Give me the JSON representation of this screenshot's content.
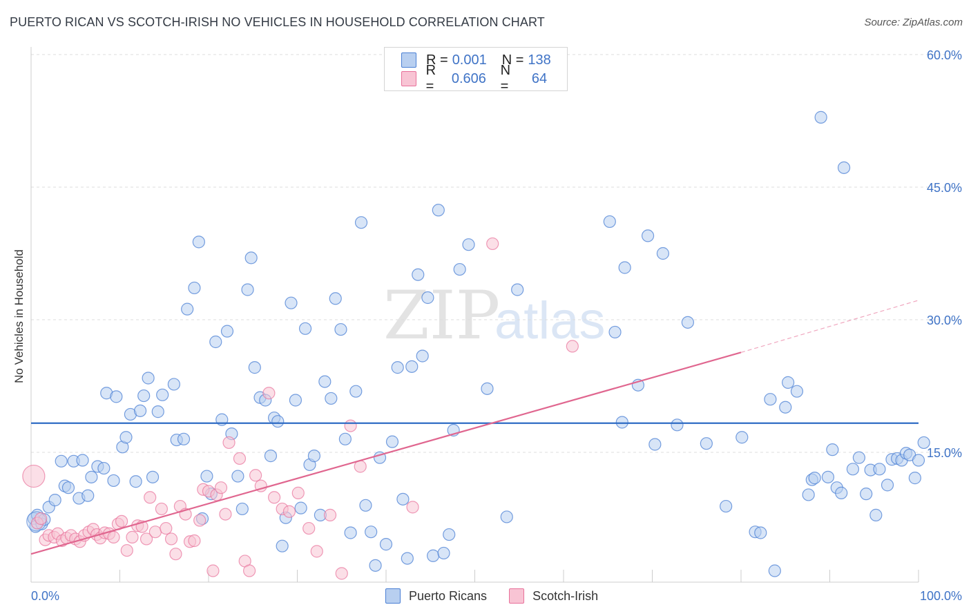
{
  "title": "PUERTO RICAN VS SCOTCH-IRISH NO VEHICLES IN HOUSEHOLD CORRELATION CHART",
  "source": "Source: ZipAtlas.com",
  "watermark": {
    "zip": "ZIP",
    "atlas": "atlas"
  },
  "legend": {
    "rows": [
      {
        "r_label": "R =",
        "r_value": "0.001",
        "n_label": "N =",
        "n_value": "138"
      },
      {
        "r_label": "R =",
        "r_value": "0.606",
        "n_label": "N =",
        "n_value": "64"
      }
    ]
  },
  "chart_data": {
    "type": "scatter",
    "title": "PUERTO RICAN VS SCOTCH-IRISH NO VEHICLES IN HOUSEHOLD CORRELATION CHART",
    "xlabel": "",
    "ylabel": "No Vehicles in Household",
    "xlim": [
      0,
      100
    ],
    "ylim": [
      0,
      63
    ],
    "x_tick_labels": [
      "0.0%",
      "100.0%"
    ],
    "y_ticks": [
      15,
      30,
      45,
      60
    ],
    "y_tick_labels": [
      "15.0%",
      "30.0%",
      "45.0%",
      "60.0%"
    ],
    "grid": true,
    "colors": {
      "blue": "#4a7fd4",
      "pink": "#e8709a",
      "blue_fill": "#b8cff0",
      "pink_fill": "#f8c4d4"
    },
    "series": [
      {
        "name": "Puerto Ricans",
        "color": "#4a7fd4",
        "trend": {
          "x": [
            0,
            100
          ],
          "y": [
            18.3,
            18.3
          ]
        },
        "points": [
          [
            0.3,
            7.5
          ],
          [
            0.5,
            6.6
          ],
          [
            0.7,
            7.9
          ],
          [
            1.2,
            6.9
          ],
          [
            1.5,
            7.4
          ],
          [
            2.0,
            8.8
          ],
          [
            2.7,
            9.6
          ],
          [
            3.4,
            14.0
          ],
          [
            3.8,
            11.2
          ],
          [
            4.2,
            11.0
          ],
          [
            4.8,
            14.0
          ],
          [
            5.4,
            9.8
          ],
          [
            5.8,
            14.1
          ],
          [
            6.4,
            10.1
          ],
          [
            6.8,
            12.2
          ],
          [
            7.5,
            13.4
          ],
          [
            8.2,
            13.2
          ],
          [
            8.5,
            21.7
          ],
          [
            9.3,
            11.8
          ],
          [
            9.6,
            21.3
          ],
          [
            10.3,
            15.6
          ],
          [
            10.7,
            16.7
          ],
          [
            11.2,
            19.3
          ],
          [
            11.8,
            11.7
          ],
          [
            12.3,
            19.7
          ],
          [
            12.7,
            21.4
          ],
          [
            13.2,
            23.4
          ],
          [
            13.7,
            12.2
          ],
          [
            14.3,
            19.6
          ],
          [
            14.8,
            21.5
          ],
          [
            16.1,
            22.7
          ],
          [
            16.4,
            16.4
          ],
          [
            17.2,
            16.5
          ],
          [
            17.6,
            31.2
          ],
          [
            18.4,
            33.6
          ],
          [
            18.9,
            38.8
          ],
          [
            19.3,
            7.5
          ],
          [
            19.8,
            12.3
          ],
          [
            20.3,
            10.3
          ],
          [
            20.8,
            27.5
          ],
          [
            21.5,
            18.7
          ],
          [
            22.1,
            28.7
          ],
          [
            22.6,
            17.1
          ],
          [
            23.3,
            12.3
          ],
          [
            23.8,
            8.6
          ],
          [
            24.4,
            33.4
          ],
          [
            24.8,
            37.0
          ],
          [
            25.2,
            24.6
          ],
          [
            25.8,
            21.2
          ],
          [
            26.4,
            20.9
          ],
          [
            27.0,
            14.6
          ],
          [
            27.4,
            18.9
          ],
          [
            27.8,
            18.5
          ],
          [
            28.3,
            4.4
          ],
          [
            28.7,
            7.6
          ],
          [
            29.3,
            31.9
          ],
          [
            29.8,
            20.9
          ],
          [
            30.4,
            8.7
          ],
          [
            30.9,
            29.0
          ],
          [
            31.4,
            13.6
          ],
          [
            31.9,
            14.6
          ],
          [
            32.6,
            7.9
          ],
          [
            33.1,
            23.0
          ],
          [
            33.8,
            21.1
          ],
          [
            34.3,
            32.4
          ],
          [
            34.9,
            28.9
          ],
          [
            35.4,
            16.5
          ],
          [
            36.0,
            5.9
          ],
          [
            36.6,
            21.9
          ],
          [
            37.2,
            41.0
          ],
          [
            37.7,
            9.0
          ],
          [
            38.3,
            6.0
          ],
          [
            38.8,
            2.2
          ],
          [
            39.3,
            14.4
          ],
          [
            40.0,
            4.6
          ],
          [
            40.7,
            16.2
          ],
          [
            41.3,
            24.6
          ],
          [
            41.9,
            9.7
          ],
          [
            42.4,
            3.0
          ],
          [
            42.9,
            24.7
          ],
          [
            43.6,
            35.1
          ],
          [
            44.1,
            25.9
          ],
          [
            44.7,
            32.5
          ],
          [
            45.3,
            3.3
          ],
          [
            45.9,
            42.4
          ],
          [
            46.5,
            3.6
          ],
          [
            47.1,
            5.7
          ],
          [
            47.6,
            17.5
          ],
          [
            48.3,
            35.7
          ],
          [
            49.3,
            38.5
          ],
          [
            51.4,
            22.2
          ],
          [
            53.6,
            7.7
          ],
          [
            54.8,
            33.4
          ],
          [
            65.2,
            41.1
          ],
          [
            65.8,
            28.6
          ],
          [
            66.6,
            18.4
          ],
          [
            66.9,
            35.9
          ],
          [
            68.4,
            22.6
          ],
          [
            69.5,
            39.5
          ],
          [
            70.3,
            15.9
          ],
          [
            71.2,
            37.5
          ],
          [
            72.8,
            18.1
          ],
          [
            74.0,
            29.7
          ],
          [
            76.1,
            16.0
          ],
          [
            78.3,
            8.9
          ],
          [
            80.1,
            16.7
          ],
          [
            81.6,
            6.0
          ],
          [
            82.2,
            5.9
          ],
          [
            83.3,
            21.0
          ],
          [
            83.8,
            1.6
          ],
          [
            85.0,
            20.1
          ],
          [
            85.3,
            22.9
          ],
          [
            86.3,
            21.9
          ],
          [
            87.6,
            10.2
          ],
          [
            88.0,
            11.9
          ],
          [
            88.3,
            12.1
          ],
          [
            89.0,
            52.9
          ],
          [
            89.8,
            12.2
          ],
          [
            90.3,
            15.3
          ],
          [
            90.8,
            11.0
          ],
          [
            91.3,
            10.4
          ],
          [
            91.6,
            47.2
          ],
          [
            92.6,
            13.1
          ],
          [
            93.3,
            14.4
          ],
          [
            94.1,
            10.3
          ],
          [
            94.6,
            13.0
          ],
          [
            95.2,
            7.9
          ],
          [
            95.6,
            13.1
          ],
          [
            96.5,
            11.3
          ],
          [
            97.0,
            14.2
          ],
          [
            97.6,
            14.3
          ],
          [
            98.1,
            14.1
          ],
          [
            98.6,
            14.9
          ],
          [
            99.0,
            14.7
          ],
          [
            99.6,
            12.1
          ],
          [
            100.0,
            14.1
          ],
          [
            100.6,
            16.1
          ]
        ]
      },
      {
        "name": "Scotch-Irish",
        "color": "#e8709a",
        "trend": {
          "x": [
            0,
            80.0
          ],
          "y": [
            3.5,
            26.3
          ]
        },
        "trend_dashed": {
          "x": [
            80.0,
            100.0
          ],
          "y": [
            26.3,
            32.2
          ]
        },
        "points": [
          [
            0.3,
            12.3
          ],
          [
            0.7,
            7.0
          ],
          [
            1.1,
            7.5
          ],
          [
            1.6,
            5.1
          ],
          [
            2.0,
            5.6
          ],
          [
            2.6,
            5.4
          ],
          [
            3.0,
            5.8
          ],
          [
            3.5,
            5.0
          ],
          [
            4.0,
            5.3
          ],
          [
            4.5,
            5.6
          ],
          [
            5.0,
            5.2
          ],
          [
            5.5,
            4.9
          ],
          [
            6.0,
            5.6
          ],
          [
            6.5,
            6.0
          ],
          [
            7.0,
            6.3
          ],
          [
            7.4,
            5.7
          ],
          [
            7.8,
            5.3
          ],
          [
            8.3,
            5.9
          ],
          [
            8.8,
            5.8
          ],
          [
            9.3,
            5.4
          ],
          [
            9.8,
            6.9
          ],
          [
            10.2,
            7.2
          ],
          [
            10.8,
            3.9
          ],
          [
            11.4,
            5.4
          ],
          [
            12.0,
            6.7
          ],
          [
            12.5,
            6.6
          ],
          [
            13.0,
            5.2
          ],
          [
            13.4,
            9.9
          ],
          [
            14.0,
            6.0
          ],
          [
            14.7,
            8.6
          ],
          [
            15.2,
            6.4
          ],
          [
            15.8,
            5.2
          ],
          [
            16.3,
            3.5
          ],
          [
            16.8,
            8.9
          ],
          [
            17.4,
            8.0
          ],
          [
            17.9,
            4.9
          ],
          [
            18.4,
            5.0
          ],
          [
            19.0,
            7.3
          ],
          [
            19.4,
            10.8
          ],
          [
            20.0,
            10.6
          ],
          [
            20.5,
            1.6
          ],
          [
            20.9,
            10.2
          ],
          [
            21.4,
            11.0
          ],
          [
            21.9,
            8.0
          ],
          [
            22.3,
            16.1
          ],
          [
            23.5,
            14.3
          ],
          [
            24.1,
            2.7
          ],
          [
            24.6,
            1.6
          ],
          [
            25.3,
            12.4
          ],
          [
            25.9,
            11.2
          ],
          [
            26.8,
            21.7
          ],
          [
            27.4,
            9.9
          ],
          [
            28.3,
            8.6
          ],
          [
            29.1,
            8.3
          ],
          [
            30.1,
            10.4
          ],
          [
            31.3,
            6.4
          ],
          [
            32.2,
            3.8
          ],
          [
            33.7,
            7.9
          ],
          [
            35.0,
            1.3
          ],
          [
            36.0,
            18.0
          ],
          [
            37.1,
            13.4
          ],
          [
            43.0,
            8.8
          ],
          [
            52.0,
            38.6
          ],
          [
            61.0,
            27.0
          ]
        ]
      }
    ]
  },
  "bottom_legend": {
    "items": [
      {
        "label": "Puerto Ricans"
      },
      {
        "label": "Scotch-Irish"
      }
    ]
  }
}
